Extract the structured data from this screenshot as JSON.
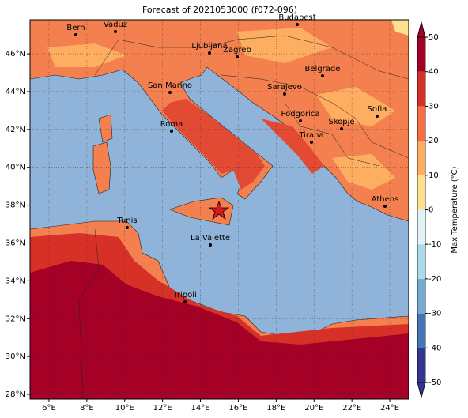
{
  "title": "Forecast of 2021053000 (f072-096)",
  "map": {
    "xlim": [
      5,
      25
    ],
    "ylim": [
      27.75,
      47.8
    ],
    "xticks": [
      {
        "value": 6,
        "label": "6°E"
      },
      {
        "value": 8,
        "label": "8°E"
      },
      {
        "value": 10,
        "label": "10°E"
      },
      {
        "value": 12,
        "label": "12°E"
      },
      {
        "value": 14,
        "label": "14°E"
      },
      {
        "value": 16,
        "label": "16°E"
      },
      {
        "value": 18,
        "label": "18°E"
      },
      {
        "value": 20,
        "label": "20°E"
      },
      {
        "value": 22,
        "label": "22°E"
      },
      {
        "value": 24,
        "label": "24°E"
      }
    ],
    "yticks": [
      {
        "value": 28,
        "label": "28°N"
      },
      {
        "value": 30,
        "label": "30°N"
      },
      {
        "value": 32,
        "label": "32°N"
      },
      {
        "value": 34,
        "label": "34°N"
      },
      {
        "value": 36,
        "label": "36°N"
      },
      {
        "value": 38,
        "label": "38°N"
      },
      {
        "value": 40,
        "label": "40°N"
      },
      {
        "value": 42,
        "label": "42°N"
      },
      {
        "value": 44,
        "label": "44°N"
      },
      {
        "value": 46,
        "label": "46°N"
      }
    ],
    "grid": true,
    "cities": [
      "Bern",
      "Vaduz",
      "Budapest",
      "Ljubljana",
      "Zagreb",
      "Belgrade",
      "San Marino",
      "Sarajevo",
      "Sofia",
      "Roma",
      "Podgorica",
      "Skopje",
      "Tirana",
      "Athens",
      "Tunis",
      "La Valette",
      "Tripoli"
    ]
  },
  "colorbar": {
    "label": "Max Temperature (°C)",
    "lim": [
      -50,
      50
    ],
    "ticks": [
      -50,
      -40,
      -30,
      -20,
      -10,
      0,
      10,
      20,
      30,
      40,
      50
    ],
    "colors": [
      "#313695",
      "#4575b4",
      "#74add1",
      "#abd9e9",
      "#e0f3f8",
      "#fee090",
      "#fdae61",
      "#f46d43",
      "#d73027",
      "#a50026"
    ]
  }
}
